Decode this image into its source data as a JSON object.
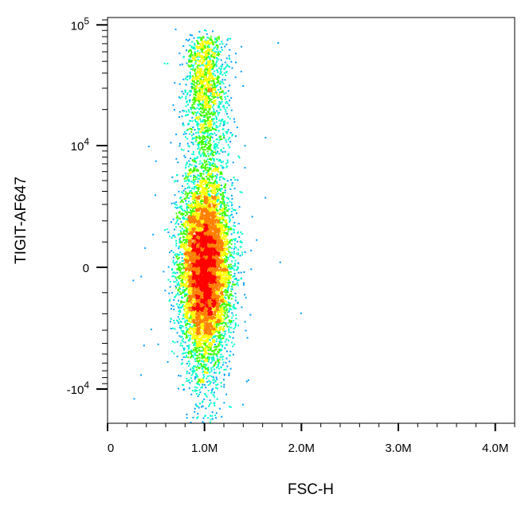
{
  "chart_data": {
    "type": "scatter",
    "subtype": "flow-cytometry-density-dot-plot",
    "title": "",
    "xlabel": "FSC-H",
    "ylabel": "TIGIT-AF647",
    "x_scale": "linear",
    "y_scale": "biexponential",
    "xlim": [
      0,
      4200000
    ],
    "ylim": [
      -22000,
      120000
    ],
    "x_ticks": [
      {
        "value": 0,
        "label": "0"
      },
      {
        "value": 1000000,
        "label": "1.0M"
      },
      {
        "value": 2000000,
        "label": "2.0M"
      },
      {
        "value": 3000000,
        "label": "3.0M"
      },
      {
        "value": 4000000,
        "label": "4.0M"
      }
    ],
    "y_ticks": [
      {
        "value": 100000,
        "base": "10",
        "exp": "5",
        "sign": ""
      },
      {
        "value": 10000,
        "base": "10",
        "exp": "4",
        "sign": ""
      },
      {
        "value": 0,
        "base": "0",
        "exp": "",
        "sign": ""
      },
      {
        "value": -10000,
        "base": "10",
        "exp": "4",
        "sign": "-"
      }
    ],
    "population": {
      "x_center": 1000000,
      "x_spread": 130000,
      "y_center": 0,
      "y_range": [
        -22000,
        80000
      ],
      "density_colors": [
        "#0000ff",
        "#00a0ff",
        "#00ffcc",
        "#40ff00",
        "#ffff00",
        "#ff8000",
        "#ff0000"
      ]
    },
    "grid": false,
    "legend": "none"
  }
}
